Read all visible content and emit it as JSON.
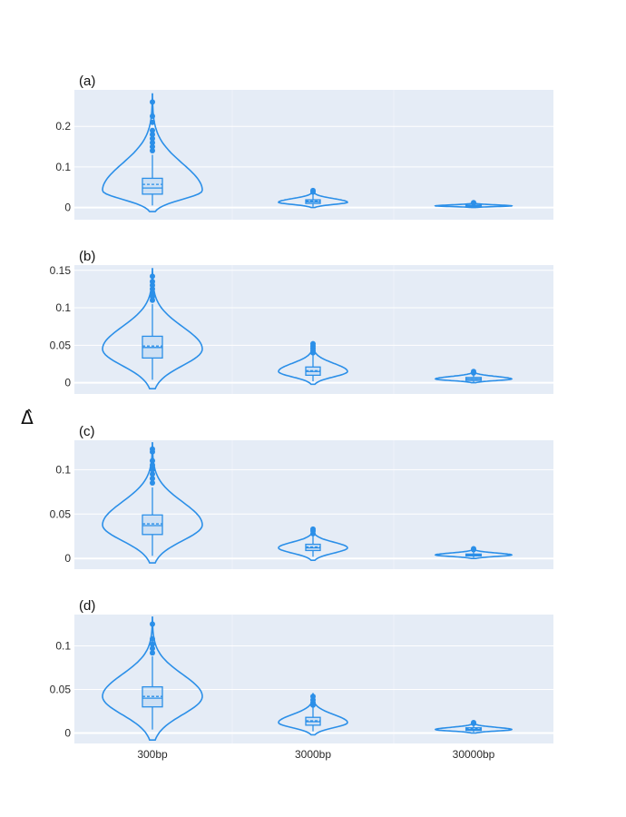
{
  "chart_data": {
    "type": "violin",
    "y_axis_label": "Δ̂",
    "categories": [
      "300bp",
      "3000bp",
      "30000bp"
    ],
    "colors": {
      "plot_background": "#e5ecf6",
      "grid": "#ffffff",
      "series": "#2b8fe8"
    },
    "panels": [
      {
        "label": "(a)",
        "ylim": [
          -0.03,
          0.29
        ],
        "yticks": [
          0,
          0.1,
          0.2
        ],
        "ytick_labels": [
          "0",
          "0.1",
          "0.2"
        ],
        "violins": [
          {
            "category": "300bp",
            "min": -0.01,
            "max": 0.28,
            "q1": 0.033,
            "median": 0.048,
            "mean": 0.057,
            "q3": 0.072,
            "whisker_low": 0.005,
            "whisker_high": 0.13,
            "peak": 0.042,
            "outliers": [
              0.14,
              0.15,
              0.16,
              0.17,
              0.18,
              0.19,
              0.21,
              0.225,
              0.26
            ]
          },
          {
            "category": "3000bp",
            "min": 0.0,
            "max": 0.045,
            "q1": 0.01,
            "median": 0.014,
            "mean": 0.016,
            "q3": 0.019,
            "whisker_low": 0.002,
            "whisker_high": 0.035,
            "peak": 0.013,
            "outliers": [
              0.038,
              0.042
            ]
          },
          {
            "category": "30000bp",
            "min": 0.0,
            "max": 0.013,
            "q1": 0.003,
            "median": 0.004,
            "mean": 0.005,
            "q3": 0.006,
            "whisker_low": 0.001,
            "whisker_high": 0.01,
            "peak": 0.004,
            "outliers": [
              0.012
            ]
          }
        ]
      },
      {
        "label": "(b)",
        "ylim": [
          -0.015,
          0.157
        ],
        "yticks": [
          0,
          0.05,
          0.1,
          0.15
        ],
        "ytick_labels": [
          "0",
          "0.05",
          "0.1",
          "0.15"
        ],
        "violins": [
          {
            "category": "300bp",
            "min": -0.008,
            "max": 0.152,
            "q1": 0.033,
            "median": 0.047,
            "mean": 0.049,
            "q3": 0.062,
            "whisker_low": 0.004,
            "whisker_high": 0.105,
            "peak": 0.045,
            "outliers": [
              0.11,
              0.115,
              0.12,
              0.125,
              0.13,
              0.135,
              0.142
            ]
          },
          {
            "category": "3000bp",
            "min": -0.002,
            "max": 0.054,
            "q1": 0.01,
            "median": 0.015,
            "mean": 0.016,
            "q3": 0.021,
            "whisker_low": 0.002,
            "whisker_high": 0.037,
            "peak": 0.015,
            "outliers": [
              0.04,
              0.043,
              0.046,
              0.049,
              0.052
            ]
          },
          {
            "category": "30000bp",
            "min": 0.0,
            "max": 0.017,
            "q1": 0.003,
            "median": 0.005,
            "mean": 0.005,
            "q3": 0.007,
            "whisker_low": 0.001,
            "whisker_high": 0.011,
            "peak": 0.005,
            "outliers": [
              0.013,
              0.015
            ]
          }
        ]
      },
      {
        "label": "(c)",
        "ylim": [
          -0.012,
          0.133
        ],
        "yticks": [
          0,
          0.05,
          0.1
        ],
        "ytick_labels": [
          "0",
          "0.05",
          "0.1"
        ],
        "violins": [
          {
            "category": "300bp",
            "min": -0.005,
            "max": 0.13,
            "q1": 0.027,
            "median": 0.037,
            "mean": 0.039,
            "q3": 0.049,
            "whisker_low": 0.003,
            "whisker_high": 0.08,
            "peak": 0.038,
            "outliers": [
              0.085,
              0.09,
              0.095,
              0.1,
              0.105,
              0.11,
              0.12,
              0.123
            ]
          },
          {
            "category": "3000bp",
            "min": -0.002,
            "max": 0.035,
            "q1": 0.009,
            "median": 0.012,
            "mean": 0.013,
            "q3": 0.016,
            "whisker_low": 0.002,
            "whisker_high": 0.026,
            "peak": 0.012,
            "outliers": [
              0.028,
              0.031,
              0.033
            ]
          },
          {
            "category": "30000bp",
            "min": 0.0,
            "max": 0.012,
            "q1": 0.003,
            "median": 0.004,
            "mean": 0.004,
            "q3": 0.005,
            "whisker_low": 0.001,
            "whisker_high": 0.008,
            "peak": 0.004,
            "outliers": [
              0.01,
              0.011
            ]
          }
        ]
      },
      {
        "label": "(d)",
        "ylim": [
          -0.012,
          0.136
        ],
        "yticks": [
          0,
          0.05,
          0.1
        ],
        "ytick_labels": [
          "0",
          "0.05",
          "0.1"
        ],
        "violins": [
          {
            "category": "300bp",
            "min": -0.008,
            "max": 0.133,
            "q1": 0.03,
            "median": 0.04,
            "mean": 0.042,
            "q3": 0.053,
            "whisker_low": 0.004,
            "whisker_high": 0.088,
            "peak": 0.042,
            "outliers": [
              0.092,
              0.097,
              0.102,
              0.108,
              0.125
            ]
          },
          {
            "category": "3000bp",
            "min": -0.002,
            "max": 0.045,
            "q1": 0.009,
            "median": 0.013,
            "mean": 0.014,
            "q3": 0.018,
            "whisker_low": 0.002,
            "whisker_high": 0.03,
            "peak": 0.012,
            "outliers": [
              0.032,
              0.035,
              0.038,
              0.042
            ]
          },
          {
            "category": "30000bp",
            "min": 0.0,
            "max": 0.013,
            "q1": 0.003,
            "median": 0.004,
            "mean": 0.005,
            "q3": 0.006,
            "whisker_low": 0.001,
            "whisker_high": 0.01,
            "peak": 0.004,
            "outliers": [
              0.011,
              0.012
            ]
          }
        ]
      }
    ]
  }
}
